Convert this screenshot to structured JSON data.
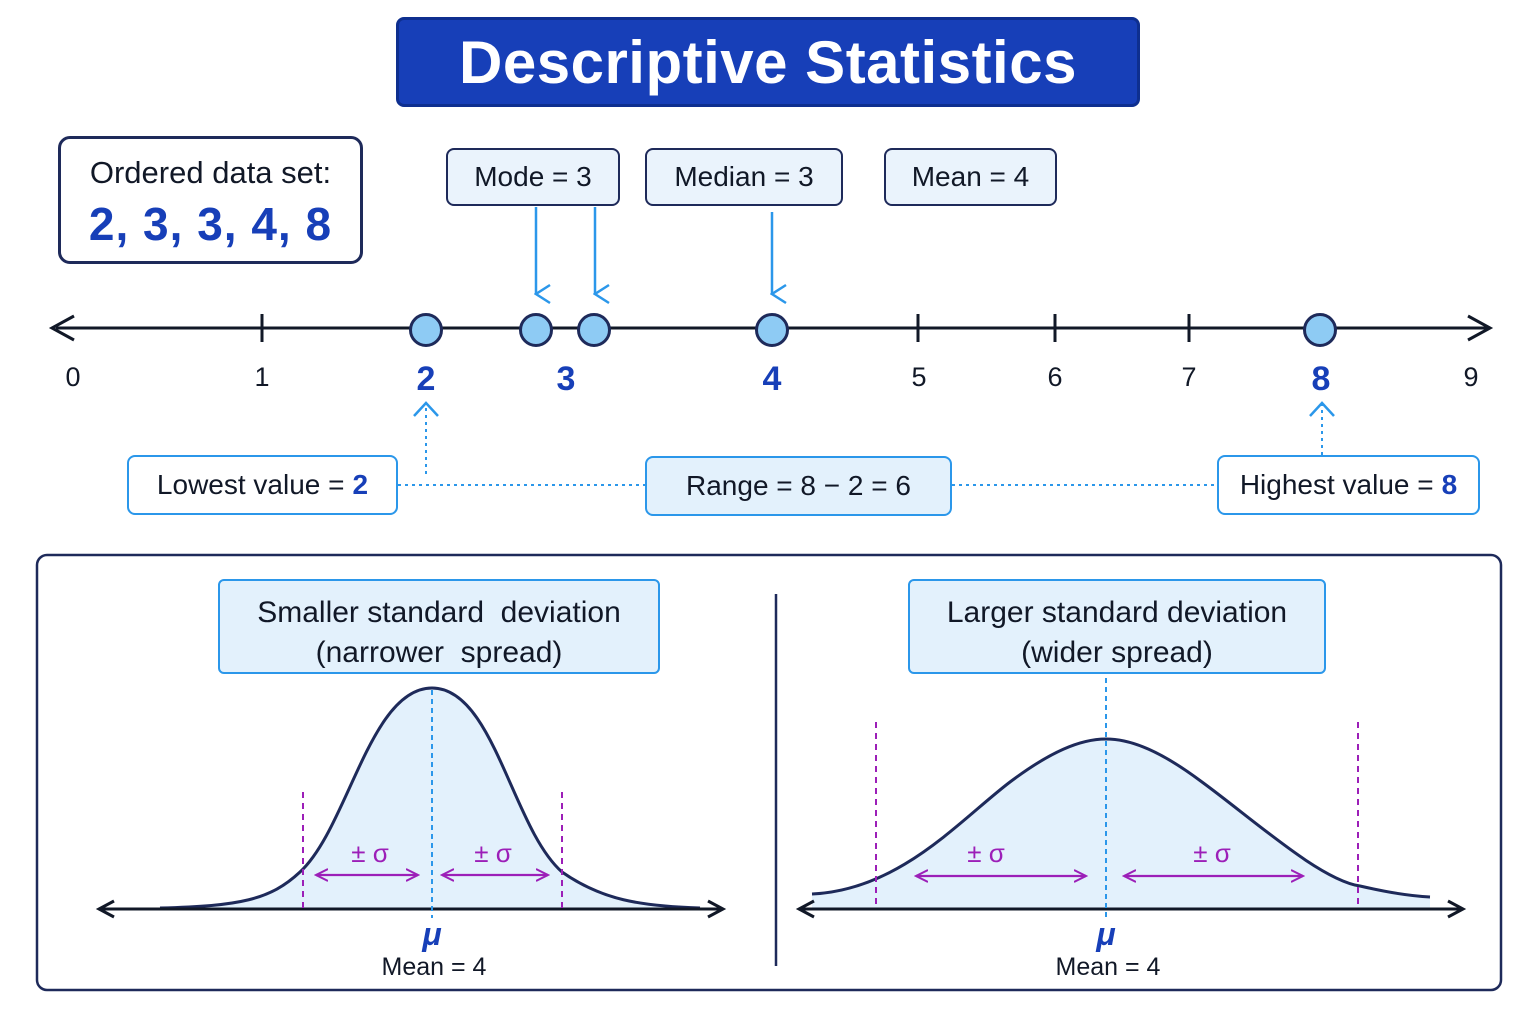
{
  "title": "Descriptive Statistics",
  "dataset": {
    "label": "Ordered data set:",
    "values_text": "2, 3, 3, 4, 8",
    "values": [
      2,
      3,
      3,
      4,
      8
    ]
  },
  "stats": {
    "mode_label": "Mode = 3",
    "median_label": "Median = 3",
    "mean_label": "Mean = 4"
  },
  "number_line": {
    "ticks": [
      "0",
      "1",
      "2",
      "3",
      "4",
      "5",
      "6",
      "7",
      "8",
      "9"
    ],
    "highlighted": [
      "2",
      "3",
      "4",
      "8"
    ]
  },
  "range": {
    "lowest_prefix": "Lowest value =",
    "lowest_value": "2",
    "range_label": "Range = 8 − 2 = 6",
    "highest_prefix": "Highest value =",
    "highest_value": "8"
  },
  "distributions": {
    "left": {
      "title_line1": "Smaller standard  deviation",
      "title_line2": "(narrower  spread)",
      "sigma_left": "± σ",
      "sigma_right": "± σ",
      "mu": "μ",
      "mean_label": "Mean = 4"
    },
    "right": {
      "title_line1": "Larger standard deviation",
      "title_line2": "(wider spread)",
      "sigma_left": "± σ",
      "sigma_right": "± σ",
      "mu": "μ",
      "mean_label": "Mean = 4"
    }
  },
  "colors": {
    "primary": "#173fb8",
    "accent": "#2b97ea",
    "sigma": "#9c1fb8",
    "dark": "#1e2a5a",
    "fill": "#e3f1fc"
  }
}
